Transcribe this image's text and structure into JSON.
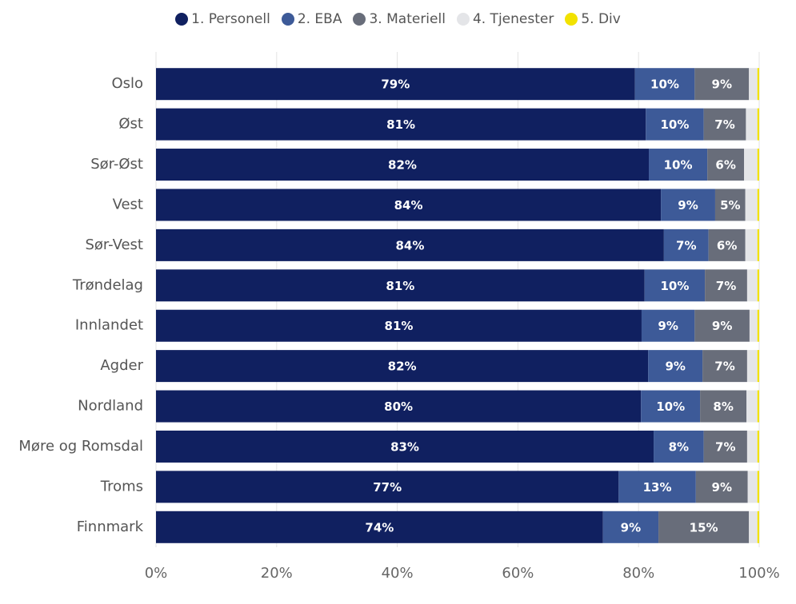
{
  "chart_data": {
    "type": "stacked-bar-horizontal",
    "categories": [
      "Oslo",
      "Øst",
      "Sør-Øst",
      "Vest",
      "Sør-Vest",
      "Trøndelag",
      "Innlandet",
      "Agder",
      "Nordland",
      "Møre og Romsdal",
      "Troms",
      "Finnmark"
    ],
    "series": [
      {
        "name": "1. Personell",
        "color": "#102060",
        "values": [
          79.4,
          81.2,
          81.7,
          83.7,
          84.2,
          81.0,
          80.5,
          81.6,
          80.4,
          82.5,
          76.7,
          74.1
        ],
        "value_labels": [
          "79%",
          "81%",
          "82%",
          "84%",
          "84%",
          "81%",
          "81%",
          "82%",
          "80%",
          "83%",
          "77%",
          "74%"
        ]
      },
      {
        "name": "2. EBA",
        "color": "#3d5a98",
        "values": [
          9.9,
          9.6,
          9.7,
          9.0,
          7.4,
          10.0,
          8.8,
          9.0,
          9.8,
          8.3,
          12.8,
          9.2
        ],
        "value_labels": [
          "10%",
          "10%",
          "10%",
          "9%",
          "7%",
          "10%",
          "9%",
          "9%",
          "10%",
          "8%",
          "13%",
          "9%"
        ]
      },
      {
        "name": "3. Materiell",
        "color": "#686d7a",
        "values": [
          9.0,
          7.0,
          6.1,
          5.0,
          6.1,
          7.0,
          9.1,
          7.4,
          7.7,
          7.2,
          8.6,
          15.0
        ],
        "value_labels": [
          "9%",
          "7%",
          "6%",
          "5%",
          "6%",
          "7%",
          "9%",
          "7%",
          "8%",
          "7%",
          "9%",
          "15%"
        ]
      },
      {
        "name": "4. Tjenester",
        "color": "#e4e5e8",
        "values": [
          1.4,
          1.9,
          2.2,
          2.0,
          2.0,
          1.7,
          1.3,
          1.7,
          1.8,
          1.7,
          1.6,
          1.4
        ]
      },
      {
        "name": "5. Div",
        "color": "#f2e200",
        "values": [
          0.3,
          0.3,
          0.3,
          0.3,
          0.3,
          0.3,
          0.3,
          0.3,
          0.3,
          0.3,
          0.3,
          0.3
        ]
      }
    ],
    "xlim": [
      0,
      100
    ],
    "xticks": [
      {
        "value": 0,
        "label": "0%"
      },
      {
        "value": 20,
        "label": "20%"
      },
      {
        "value": 40,
        "label": "40%"
      },
      {
        "value": 60,
        "label": "60%"
      },
      {
        "value": 80,
        "label": "80%"
      },
      {
        "value": 100,
        "label": "100%"
      }
    ],
    "grid": true
  }
}
